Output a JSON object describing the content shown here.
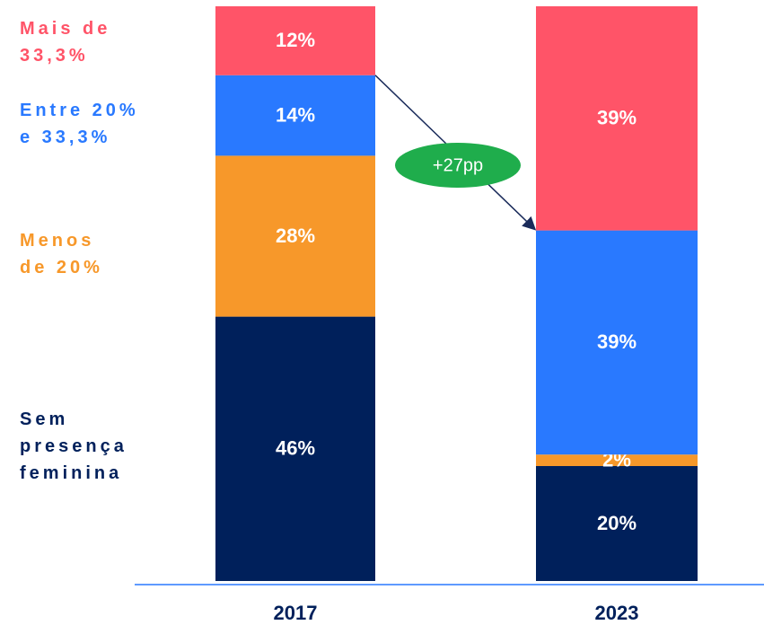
{
  "chart_data": {
    "type": "stacked_bar",
    "categories": [
      "2017",
      "2023"
    ],
    "series": [
      {
        "name": "Sem presença feminina",
        "color": "#00205b",
        "values": [
          46,
          20
        ],
        "value_labels": [
          "46%",
          "20%"
        ]
      },
      {
        "name": "Menos de 20%",
        "color": "#f7982a",
        "values": [
          28,
          2
        ],
        "value_labels": [
          "28%",
          "2%"
        ]
      },
      {
        "name": "Entre 20% e 33,3%",
        "color": "#2979ff",
        "values": [
          14,
          39
        ],
        "value_labels": [
          "14%",
          "39%"
        ]
      },
      {
        "name": "Mais de 33,3%",
        "color": "#ff5468",
        "values": [
          12,
          39
        ],
        "value_labels": [
          "12%",
          "39%"
        ]
      }
    ],
    "annotation": "+27pp",
    "annotation_color": "#1fad4c"
  }
}
